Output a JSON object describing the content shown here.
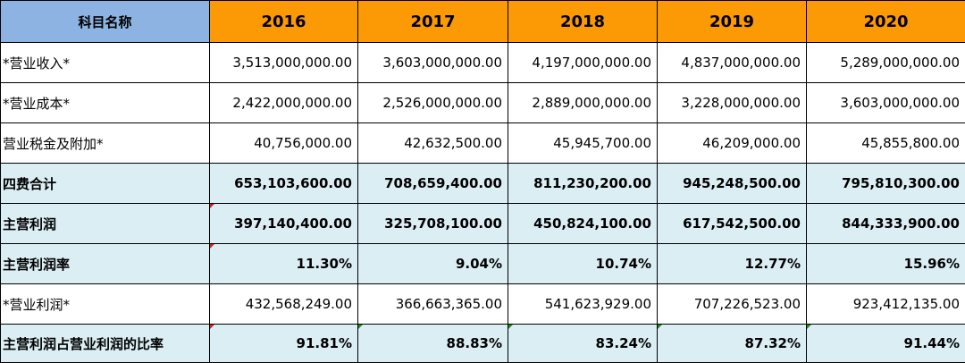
{
  "table": {
    "header": [
      "科目名称",
      "2016",
      "2017",
      "2018",
      "2019",
      "2020"
    ],
    "rows": [
      {
        "label": "*营业收入*",
        "values": [
          "3,513,000,000.00",
          "3,603,000,000.00",
          "4,197,000,000.00",
          "4,837,000,000.00",
          "5,289,000,000.00"
        ]
      },
      {
        "label": "*营业成本*",
        "values": [
          "2,422,000,000.00",
          "2,526,000,000.00",
          "2,889,000,000.00",
          "3,228,000,000.00",
          "3,603,000,000.00"
        ]
      },
      {
        "label": "营业税金及附加*",
        "values": [
          "40,756,000.00",
          "42,632,500.00",
          "45,945,700.00",
          "46,209,000.00",
          "45,855,800.00"
        ]
      },
      {
        "label": "四费合计",
        "values": [
          "653,103,600.00",
          "708,659,400.00",
          "811,230,200.00",
          "945,248,500.00",
          "795,810,300.00"
        ]
      },
      {
        "label": "主营利润",
        "values": [
          "397,140,400.00",
          "325,708,100.00",
          "450,824,100.00",
          "617,542,500.00",
          "844,333,900.00"
        ]
      },
      {
        "label": "主营利润率",
        "values": [
          "11.30%",
          "9.04%",
          "10.74%",
          "12.77%",
          "15.96%"
        ]
      },
      {
        "label": "*营业利润*",
        "values": [
          "432,568,249.00",
          "366,663,365.00",
          "541,623,929.00",
          "707,226,523.00",
          "923,412,135.00"
        ]
      },
      {
        "label": "主营利润占营业利润的比率",
        "values": [
          "91.81%",
          "88.83%",
          "83.24%",
          "87.32%",
          "91.44%"
        ]
      }
    ]
  }
}
